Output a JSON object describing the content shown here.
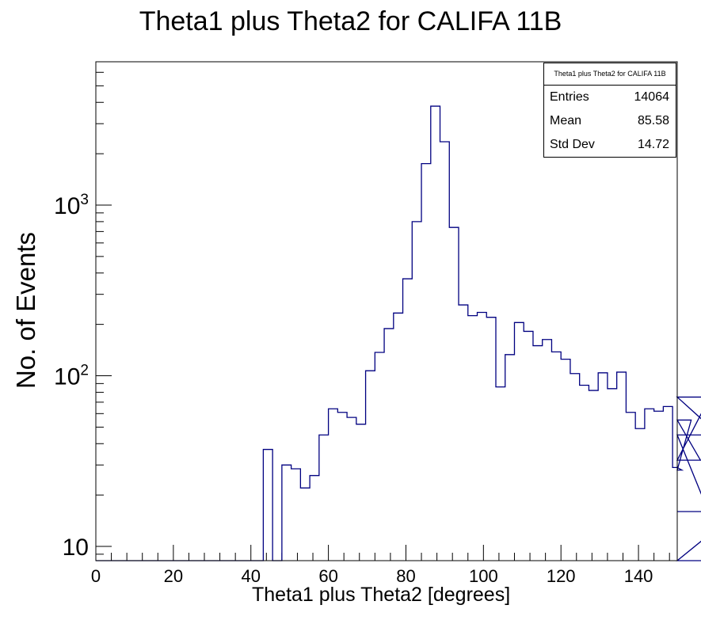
{
  "chart_data": {
    "type": "histogram",
    "title": "Theta1 plus Theta2 for CALIFA 11B",
    "xlabel": "Theta1 plus Theta2 [degrees]",
    "ylabel": "No. of Events",
    "xlim": [
      0,
      150
    ],
    "ylim": [
      8,
      7000
    ],
    "yscale": "log",
    "x_ticks": [
      0,
      20,
      40,
      60,
      80,
      100,
      120,
      140
    ],
    "y_tick_labels": [
      "10",
      "10²",
      "10³"
    ],
    "line_color": "#000080",
    "bin_width": 2.4,
    "bin_start": 43.2,
    "counts": [
      37,
      0,
      30,
      28.5,
      22,
      26,
      45,
      64,
      61,
      57,
      52,
      107,
      137,
      189,
      233,
      370,
      800,
      1750,
      3800,
      2350,
      740,
      260,
      225,
      235,
      220,
      86,
      133,
      205,
      182,
      150,
      163,
      138,
      125,
      103,
      88,
      82,
      104,
      84,
      105,
      61,
      49,
      64,
      62,
      66,
      29,
      28,
      55,
      32,
      75,
      45,
      0,
      16
    ],
    "zero_bins_note": "",
    "stats": {
      "title": "Theta1 plus Theta2 for CALIFA 11B",
      "rows": [
        {
          "label": "Entries",
          "value": "14064"
        },
        {
          "label": "Mean",
          "value": "85.58"
        },
        {
          "label": "Std Dev",
          "value": "14.72"
        }
      ]
    }
  }
}
